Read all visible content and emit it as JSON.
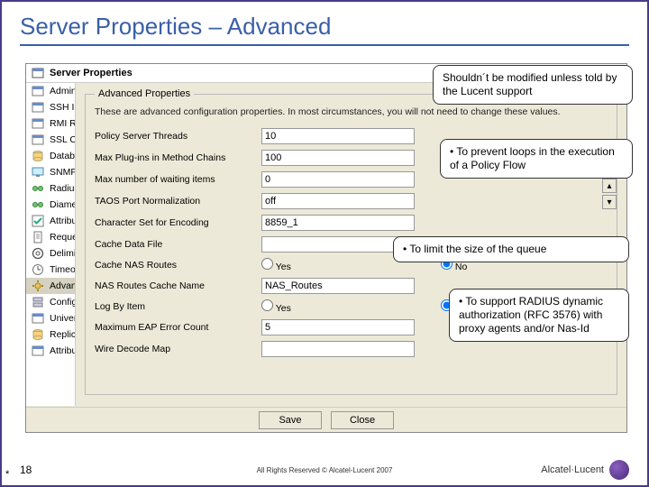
{
  "title": "Server Properties – Advanced",
  "dialog": {
    "title": "Server Properties",
    "group_label": "Advanced Properties",
    "description": "These are advanced configuration properties. In most circumstances, you will not need to change these values.",
    "buttons": {
      "save": "Save",
      "close": "Close"
    }
  },
  "sidebar": {
    "items": [
      {
        "label": "Admin Interface",
        "icon": "window"
      },
      {
        "label": "SSH Interface",
        "icon": "window"
      },
      {
        "label": "RMI Registry",
        "icon": "window"
      },
      {
        "label": "SSL Configuration",
        "icon": "window"
      },
      {
        "label": "Database",
        "icon": "db"
      },
      {
        "label": "SNMP",
        "icon": "screen"
      },
      {
        "label": "Radius Properties",
        "icon": "net"
      },
      {
        "label": "Diameter Properties",
        "icon": "net"
      },
      {
        "label": "Attributes",
        "icon": "check"
      },
      {
        "label": "Requests",
        "icon": "doc"
      },
      {
        "label": "Delimiters",
        "icon": "at"
      },
      {
        "label": "Timeouts",
        "icon": "clock"
      },
      {
        "label": "Advanced",
        "icon": "gear",
        "selected": true
      },
      {
        "label": "Configuration Server",
        "icon": "server"
      },
      {
        "label": "Universal State Server",
        "icon": "window"
      },
      {
        "label": "Replication",
        "icon": "db"
      },
      {
        "label": "Attribute Counters",
        "icon": "window"
      }
    ]
  },
  "fields": [
    {
      "label": "Policy Server Threads",
      "type": "text",
      "value": "10"
    },
    {
      "label": "Max Plug-ins in Method Chains",
      "type": "text",
      "value": "100"
    },
    {
      "label": "Max number of waiting items",
      "type": "text",
      "value": "0"
    },
    {
      "label": "TAOS Port Normalization",
      "type": "text",
      "value": "off"
    },
    {
      "label": "Character Set for Encoding",
      "type": "text",
      "value": "8859_1"
    },
    {
      "label": "Cache Data File",
      "type": "text",
      "value": ""
    },
    {
      "label": "Cache NAS Routes",
      "type": "radio",
      "yes": "Yes",
      "no": "No",
      "value": "no"
    },
    {
      "label": "NAS Routes Cache Name",
      "type": "text",
      "value": "NAS_Routes"
    },
    {
      "label": "Log By Item",
      "type": "radio",
      "yes": "Yes",
      "no": "No",
      "value": "no"
    },
    {
      "label": "Maximum EAP Error Count",
      "type": "text",
      "value": "5"
    },
    {
      "label": "Wire Decode Map",
      "type": "text",
      "value": ""
    }
  ],
  "callouts": {
    "c1": "Shouldn´t be modified unless told by the Lucent support",
    "c2": "• To prevent loops in the execution of a Policy Flow",
    "c3": "• To limit the size of the queue",
    "c4": "• To support RADIUS dynamic authorization (RFC 3576) with proxy agents and/or Nas-Id"
  },
  "footer": {
    "page": "18",
    "copyright": "All Rights Reserved © Alcatel-Lucent 2007",
    "brand": "Alcatel·Lucent"
  },
  "colors": {
    "title": "#3a5fa8",
    "border": "#4a3a8a",
    "dialog_bg": "#ece9d8"
  }
}
